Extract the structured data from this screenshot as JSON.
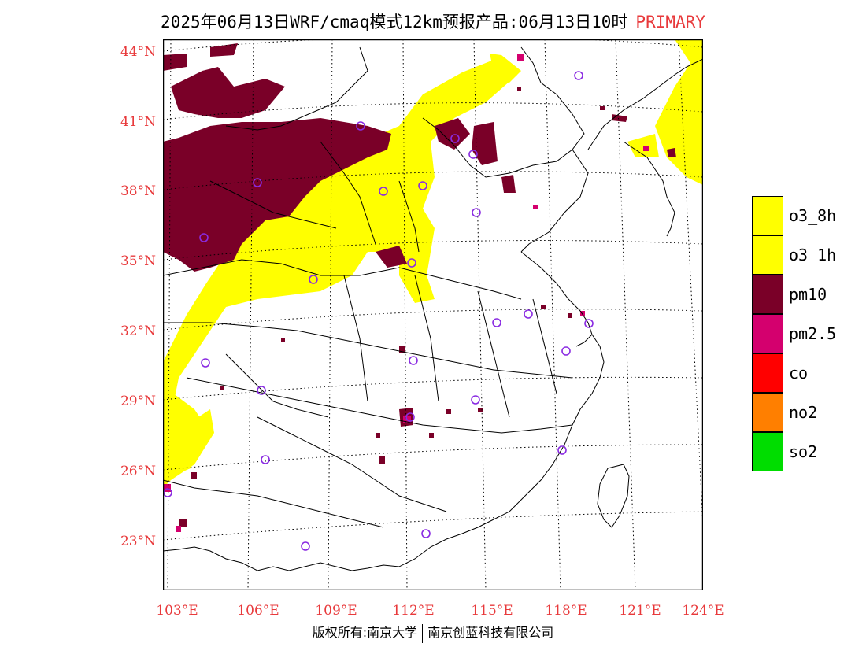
{
  "header": {
    "title": "2025年06月13日WRF/cmaq模式12km预报产品:06月13日10时",
    "tag": "PRIMARY"
  },
  "axes": {
    "lat_labels": [
      "44°N",
      "41°N",
      "38°N",
      "35°N",
      "32°N",
      "29°N",
      "26°N",
      "23°N"
    ],
    "lon_labels": [
      "103°E",
      "106°E",
      "109°E",
      "112°E",
      "115°E",
      "118°E",
      "121°E",
      "124°E"
    ]
  },
  "legend": {
    "items": [
      {
        "label": "o3_8h",
        "color": "#ffff00"
      },
      {
        "label": "o3_1h",
        "color": "#ffff00"
      },
      {
        "label": "pm10",
        "color": "#7a0028"
      },
      {
        "label": "pm2.5",
        "color": "#d4006e"
      },
      {
        "label": "co",
        "color": "#ff0000"
      },
      {
        "label": "no2",
        "color": "#ff7f00"
      },
      {
        "label": "so2",
        "color": "#00dd00"
      }
    ]
  },
  "footer": {
    "left": "版权所有:南京大学",
    "right": "南京创蓝科技有限公司"
  },
  "colors": {
    "axis_label": "#e8393b",
    "station_marker": "#8a2be2"
  }
}
